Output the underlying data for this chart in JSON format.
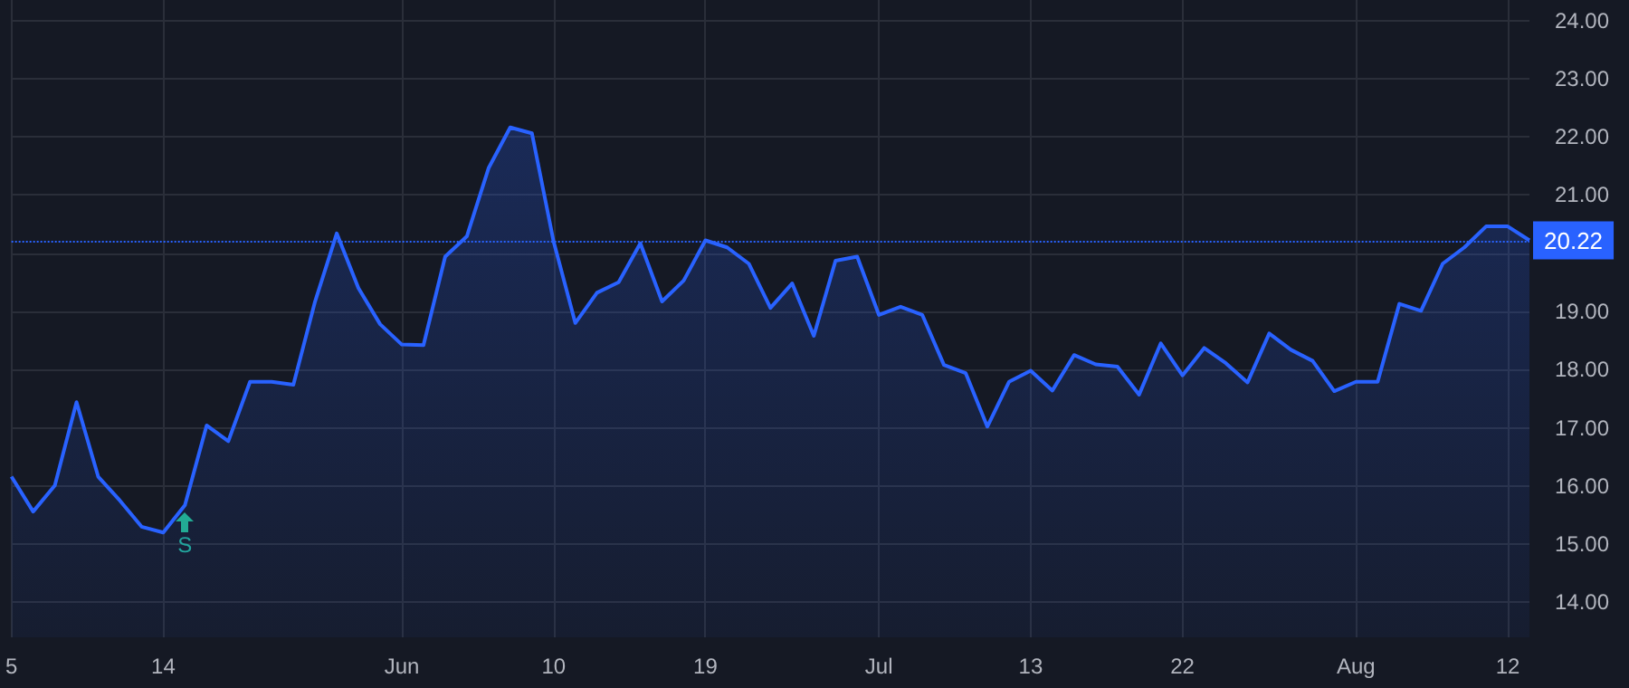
{
  "chart_data": {
    "type": "area",
    "categories": [
      "5",
      null,
      null,
      null,
      null,
      null,
      null,
      "14",
      null,
      null,
      null,
      null,
      null,
      null,
      null,
      null,
      null,
      null,
      "Jun",
      null,
      null,
      null,
      null,
      null,
      null,
      "10",
      null,
      null,
      null,
      null,
      null,
      null,
      "19",
      null,
      null,
      null,
      null,
      null,
      null,
      null,
      "Jul",
      null,
      null,
      null,
      null,
      null,
      null,
      "13",
      null,
      null,
      null,
      null,
      null,
      null,
      "22",
      null,
      null,
      null,
      null,
      null,
      null,
      null,
      "Aug",
      null,
      null,
      null,
      null,
      null,
      null,
      "12",
      null
    ],
    "series": [
      {
        "color": "#2962ff",
        "values": [
          16.16,
          15.56,
          16.01,
          17.44,
          16.16,
          15.75,
          15.3,
          15.2,
          15.67,
          17.04,
          16.77,
          17.79,
          17.79,
          17.74,
          19.17,
          20.34,
          19.4,
          18.78,
          18.43,
          18.42,
          19.94,
          20.29,
          21.46,
          22.16,
          22.06,
          20.2,
          18.8,
          19.32,
          19.5,
          20.17,
          19.17,
          19.53,
          20.22,
          20.1,
          19.82,
          19.06,
          19.48,
          18.58,
          19.87,
          19.94,
          18.94,
          19.08,
          18.94,
          18.08,
          17.94,
          17.02,
          17.79,
          17.98,
          17.64,
          18.25,
          18.09,
          18.05,
          17.57,
          18.45,
          17.9,
          18.37,
          18.11,
          17.78,
          18.62,
          18.34,
          18.15,
          17.63,
          17.79,
          17.79,
          19.13,
          19.01,
          19.82,
          20.1,
          20.46,
          20.46,
          20.22
        ]
      }
    ],
    "ylim": [
      13.4,
      24.35
    ],
    "yticks": [
      {
        "value": 14,
        "label": "14.00"
      },
      {
        "value": 15,
        "label": "15.00"
      },
      {
        "value": 16,
        "label": "16.00"
      },
      {
        "value": 17,
        "label": "17.00"
      },
      {
        "value": 18,
        "label": "18.00"
      },
      {
        "value": 19,
        "label": "19.00"
      },
      {
        "value": 20,
        "label": null
      },
      {
        "value": 21,
        "label": "21.00"
      },
      {
        "value": 22,
        "label": "22.00"
      },
      {
        "value": 23,
        "label": "23.00"
      },
      {
        "value": 24,
        "label": "24.00"
      }
    ],
    "ref_lines": [
      {
        "axis": "y",
        "value": 20.22,
        "label": "20.22",
        "color": "#2962ff",
        "line_style": "dotted"
      }
    ],
    "annotations": [
      "S"
    ],
    "grid": true,
    "marker": "none",
    "line_style": "solid"
  }
}
